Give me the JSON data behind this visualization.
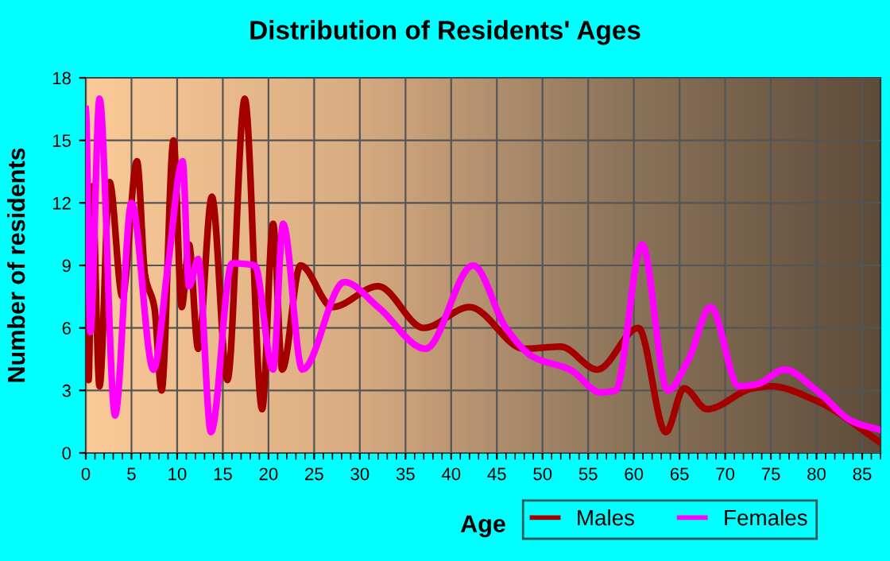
{
  "chart_data": {
    "type": "line",
    "title": "Distribution of Residents' Ages",
    "xlabel": "Age",
    "ylabel": "Number of residents",
    "xlim": [
      0,
      87
    ],
    "xticks": [
      0,
      5,
      10,
      15,
      20,
      25,
      30,
      35,
      40,
      45,
      50,
      55,
      60,
      65,
      70,
      75,
      80,
      85
    ],
    "ylim": [
      0,
      18
    ],
    "yticks": [
      0,
      3,
      6,
      9,
      12,
      15,
      18
    ],
    "grid": true,
    "legend": "bottom right",
    "line_style": "solid",
    "marker": "none",
    "series": [
      {
        "name": "Males",
        "color": "#a50000",
        "x": [
          0,
          0.3,
          0.7,
          1.5,
          2.6,
          4,
          5.6,
          6.5,
          7.5,
          8.3,
          9.6,
          10.5,
          11.3,
          12.3,
          13.8,
          15.5,
          17.4,
          19.3,
          20.5,
          21.5,
          23.5,
          27,
          32,
          37,
          42,
          48,
          52,
          56,
          60.5,
          63.5,
          65.5,
          68,
          73,
          75,
          80,
          87
        ],
        "values": [
          11.1,
          3.5,
          12.8,
          3.2,
          13,
          7.5,
          14,
          8.5,
          7,
          3,
          15,
          7,
          10,
          5,
          12.3,
          3.5,
          17,
          2.1,
          11,
          4,
          9,
          7,
          8,
          6,
          7,
          5,
          5.1,
          4,
          6,
          1,
          3.1,
          2.1,
          3.1,
          3.2,
          2.5,
          0.5
        ]
      },
      {
        "name": "Females",
        "color": "#ff00ff",
        "x": [
          0,
          0.5,
          1.5,
          3.2,
          5,
          7.4,
          9,
          10.6,
          11.3,
          12.3,
          13.7,
          16,
          18.5,
          20.5,
          21.6,
          23.7,
          28.3,
          32,
          37.2,
          42.4,
          46,
          49,
          53,
          56.4,
          58,
          60.9,
          63.7,
          66,
          68.4,
          71.5,
          73.5,
          76.5,
          80,
          84,
          87
        ],
        "values": [
          16.5,
          5.8,
          17,
          1.8,
          12,
          4,
          9,
          14,
          8,
          9.3,
          1,
          9.1,
          9,
          4,
          11,
          4,
          8.2,
          7,
          5,
          9,
          6,
          4.6,
          4,
          2.9,
          3,
          10,
          3,
          4.5,
          7,
          3.2,
          3.3,
          4,
          3,
          1.5,
          1.1
        ]
      }
    ]
  }
}
